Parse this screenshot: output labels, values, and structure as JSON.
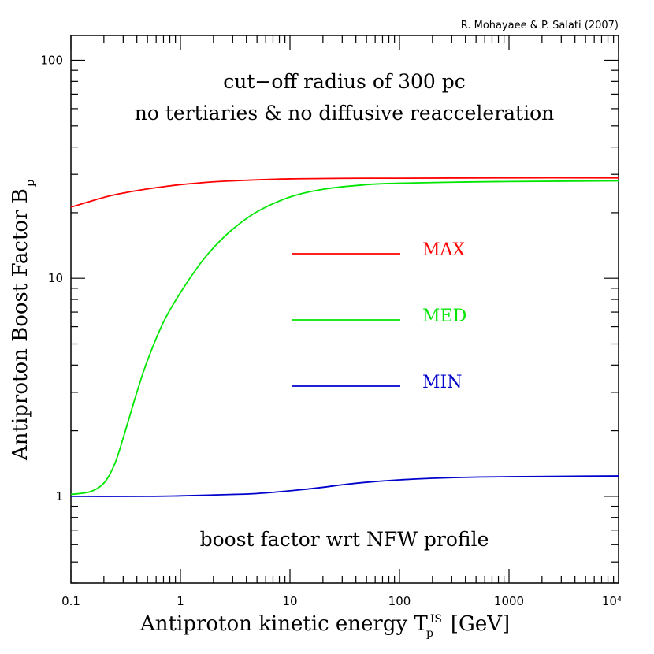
{
  "credit": "R. Mohayaee & P. Salati (2007)",
  "annotations": {
    "line1": "cut−off radius of 300 pc",
    "line2": "no tertiaries & no diffusive reacceleration",
    "bottom": "boost factor wrt NFW profile"
  },
  "axes": {
    "xlabel_main": "Antiproton kinetic energy T",
    "xlabel_sup": "IS",
    "xlabel_sub": "p",
    "xlabel_unit": "[GeV]",
    "ylabel_main": "Antiproton Boost Factor B",
    "ylabel_sub": "p"
  },
  "colors": {
    "MAX": "#ff0000",
    "MED": "#00e600",
    "MIN": "#0000cc",
    "axis": "#000000"
  },
  "chart_data": {
    "type": "line",
    "x_scale": "log",
    "y_scale": "log",
    "xlim": [
      0.1,
      10000
    ],
    "ylim": [
      0.4,
      130
    ],
    "x_ticks": [
      {
        "value": 0.1,
        "label": "0.1"
      },
      {
        "value": 1,
        "label": "1"
      },
      {
        "value": 10,
        "label": "10"
      },
      {
        "value": 100,
        "label": "100"
      },
      {
        "value": 1000,
        "label": "1000"
      },
      {
        "value": 10000,
        "label": "10⁴"
      }
    ],
    "y_ticks": [
      {
        "value": 1,
        "label": "1"
      },
      {
        "value": 10,
        "label": "10"
      },
      {
        "value": 100,
        "label": "100"
      }
    ],
    "grid": false,
    "legend": "center",
    "series": [
      {
        "name": "MAX",
        "x": [
          0.1,
          0.2,
          0.3,
          0.5,
          0.7,
          1,
          2,
          3,
          5,
          10,
          20,
          50,
          100,
          1000,
          10000
        ],
        "y": [
          21.2,
          23.5,
          24.6,
          25.7,
          26.3,
          26.9,
          27.7,
          28.0,
          28.3,
          28.6,
          28.7,
          28.8,
          28.8,
          28.9,
          28.9
        ]
      },
      {
        "name": "MED",
        "x": [
          0.1,
          0.15,
          0.2,
          0.25,
          0.3,
          0.4,
          0.5,
          0.7,
          1,
          1.5,
          2,
          3,
          5,
          10,
          20,
          50,
          100,
          300,
          1000,
          10000
        ],
        "y": [
          1.02,
          1.05,
          1.15,
          1.4,
          1.85,
          3.0,
          4.2,
          6.3,
          8.6,
          11.6,
          13.8,
          16.8,
          20.2,
          23.6,
          25.6,
          26.9,
          27.3,
          27.6,
          27.8,
          28.0
        ]
      },
      {
        "name": "MIN",
        "x": [
          0.1,
          0.5,
          1,
          3,
          5,
          10,
          20,
          30,
          50,
          100,
          200,
          500,
          1000,
          3000,
          10000
        ],
        "y": [
          1.0,
          1.0,
          1.005,
          1.02,
          1.03,
          1.06,
          1.1,
          1.13,
          1.16,
          1.19,
          1.21,
          1.225,
          1.23,
          1.235,
          1.24
        ]
      }
    ]
  }
}
